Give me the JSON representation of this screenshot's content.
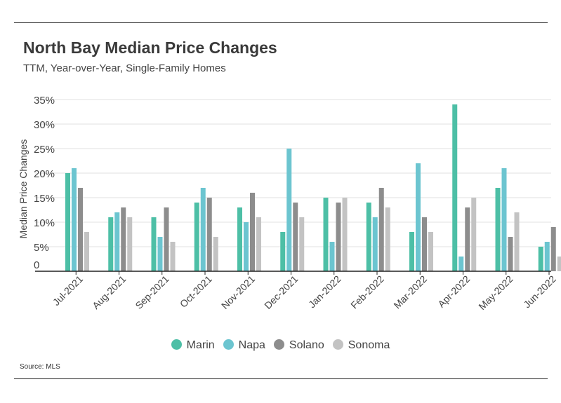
{
  "title": "North Bay Median Price Changes",
  "subtitle": "TTM, Year-over-Year, Single-Family Homes",
  "source": "Source:  MLS",
  "chart_data": {
    "type": "bar",
    "title": "North Bay Median Price Changes",
    "subtitle": "TTM, Year-over-Year, Single-Family Homes",
    "xlabel": "",
    "ylabel": "Median Price Changes",
    "ylim": [
      0,
      35
    ],
    "yticks": [
      0,
      5,
      10,
      15,
      20,
      25,
      30,
      35
    ],
    "ytick_labels": [
      "0",
      "5%",
      "10%",
      "15%",
      "20%",
      "25%",
      "30%",
      "35%"
    ],
    "grid": true,
    "legend_position": "bottom",
    "categories": [
      "Jul-2021",
      "Aug-2021",
      "Sep-2021",
      "Oct-2021",
      "Nov-2021",
      "Dec-2021",
      "Jan-2022",
      "Feb-2022",
      "Mar-2022",
      "Apr-2022",
      "May-2022",
      "Jun-2022"
    ],
    "series": [
      {
        "name": "Marin",
        "color": "#4dbfa6",
        "values": [
          20,
          11,
          11,
          14,
          13,
          8,
          15,
          14,
          8,
          34,
          17,
          5
        ]
      },
      {
        "name": "Napa",
        "color": "#6cc5d0",
        "values": [
          21,
          12,
          7,
          17,
          10,
          25,
          6,
          11,
          22,
          3,
          21,
          6
        ]
      },
      {
        "name": "Solano",
        "color": "#8d8d8d",
        "values": [
          17,
          13,
          13,
          15,
          16,
          14,
          14,
          17,
          11,
          13,
          7,
          9
        ]
      },
      {
        "name": "Sonoma",
        "color": "#c3c3c3",
        "values": [
          8,
          11,
          6,
          7,
          11,
          11,
          15,
          13,
          8,
          15,
          12,
          3
        ]
      }
    ]
  }
}
